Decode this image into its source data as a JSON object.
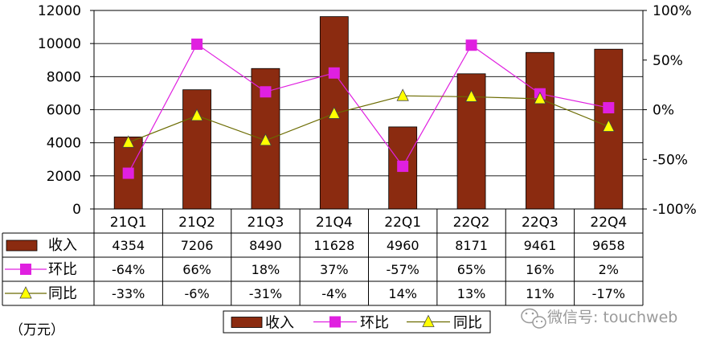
{
  "chart_data": {
    "type": "bar",
    "categories": [
      "21Q1",
      "21Q2",
      "21Q3",
      "21Q4",
      "22Q1",
      "22Q2",
      "22Q3",
      "22Q4"
    ],
    "series": [
      {
        "name": "收入",
        "kind": "bar",
        "axis": "left",
        "color": "#8B2B10",
        "values": [
          4354,
          7206,
          8490,
          11628,
          4960,
          8171,
          9461,
          9658
        ]
      },
      {
        "name": "环比",
        "kind": "line",
        "axis": "right",
        "color": "#E020E0",
        "marker": "square",
        "values": [
          -64,
          66,
          18,
          37,
          -57,
          65,
          16,
          2
        ]
      },
      {
        "name": "同比",
        "kind": "line",
        "axis": "right",
        "color": "#6B6B00",
        "marker": "triangle",
        "values": [
          -33,
          -6,
          -31,
          -4,
          14,
          13,
          11,
          -17
        ]
      }
    ],
    "table_rows": [
      {
        "label": "收入",
        "cells": [
          "4354",
          "7206",
          "8490",
          "11628",
          "4960",
          "8171",
          "9461",
          "9658"
        ]
      },
      {
        "label": "环比",
        "cells": [
          "-64%",
          "66%",
          "18%",
          "37%",
          "-57%",
          "65%",
          "16%",
          "2%"
        ]
      },
      {
        "label": "同比",
        "cells": [
          "-33%",
          "-6%",
          "-31%",
          "-4%",
          "14%",
          "13%",
          "11%",
          "-17%"
        ]
      }
    ],
    "ylim_left": [
      0,
      12000
    ],
    "yticks_left": [
      "0",
      "2000",
      "4000",
      "6000",
      "8000",
      "10000",
      "12000"
    ],
    "ylim_right": [
      -100,
      100
    ],
    "yticks_right": [
      "-100%",
      "-50%",
      "0%",
      "50%",
      "100%"
    ],
    "unit_note": "（万元）",
    "legend": [
      "收入",
      "环比",
      "同比"
    ],
    "legend_position": "bottom",
    "grid": "horizontal"
  },
  "watermark": {
    "text": "微信号: touchweb",
    "icon": "wechat-icon"
  }
}
